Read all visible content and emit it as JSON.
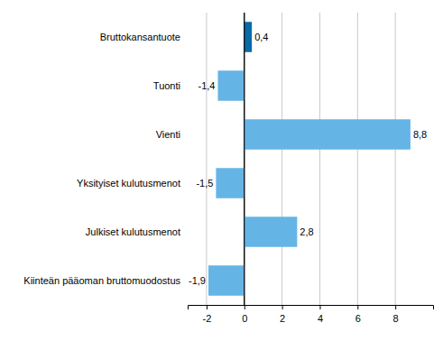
{
  "chart_data": {
    "type": "bar",
    "orientation": "horizontal",
    "categories": [
      "Bruttokansantuote",
      "Tuonti",
      "Vienti",
      "Yksityiset kulutusmenot",
      "Julkiset kulutusmenot",
      "Kiinteän pääoman bruttomuodostus"
    ],
    "values": [
      0.4,
      -1.4,
      8.8,
      -1.5,
      2.8,
      -1.9
    ],
    "value_labels": [
      "0,4",
      "-1,4",
      "8,8",
      "-1,5",
      "2,8",
      "-1,9"
    ],
    "colors": [
      "#0a6aa6",
      "#65b4e6",
      "#65b4e6",
      "#65b4e6",
      "#65b4e6",
      "#65b4e6"
    ],
    "xlim": [
      -3,
      10
    ],
    "xticks": [
      -2,
      0,
      2,
      4,
      6,
      8
    ],
    "grid": true,
    "data_labels": true
  }
}
